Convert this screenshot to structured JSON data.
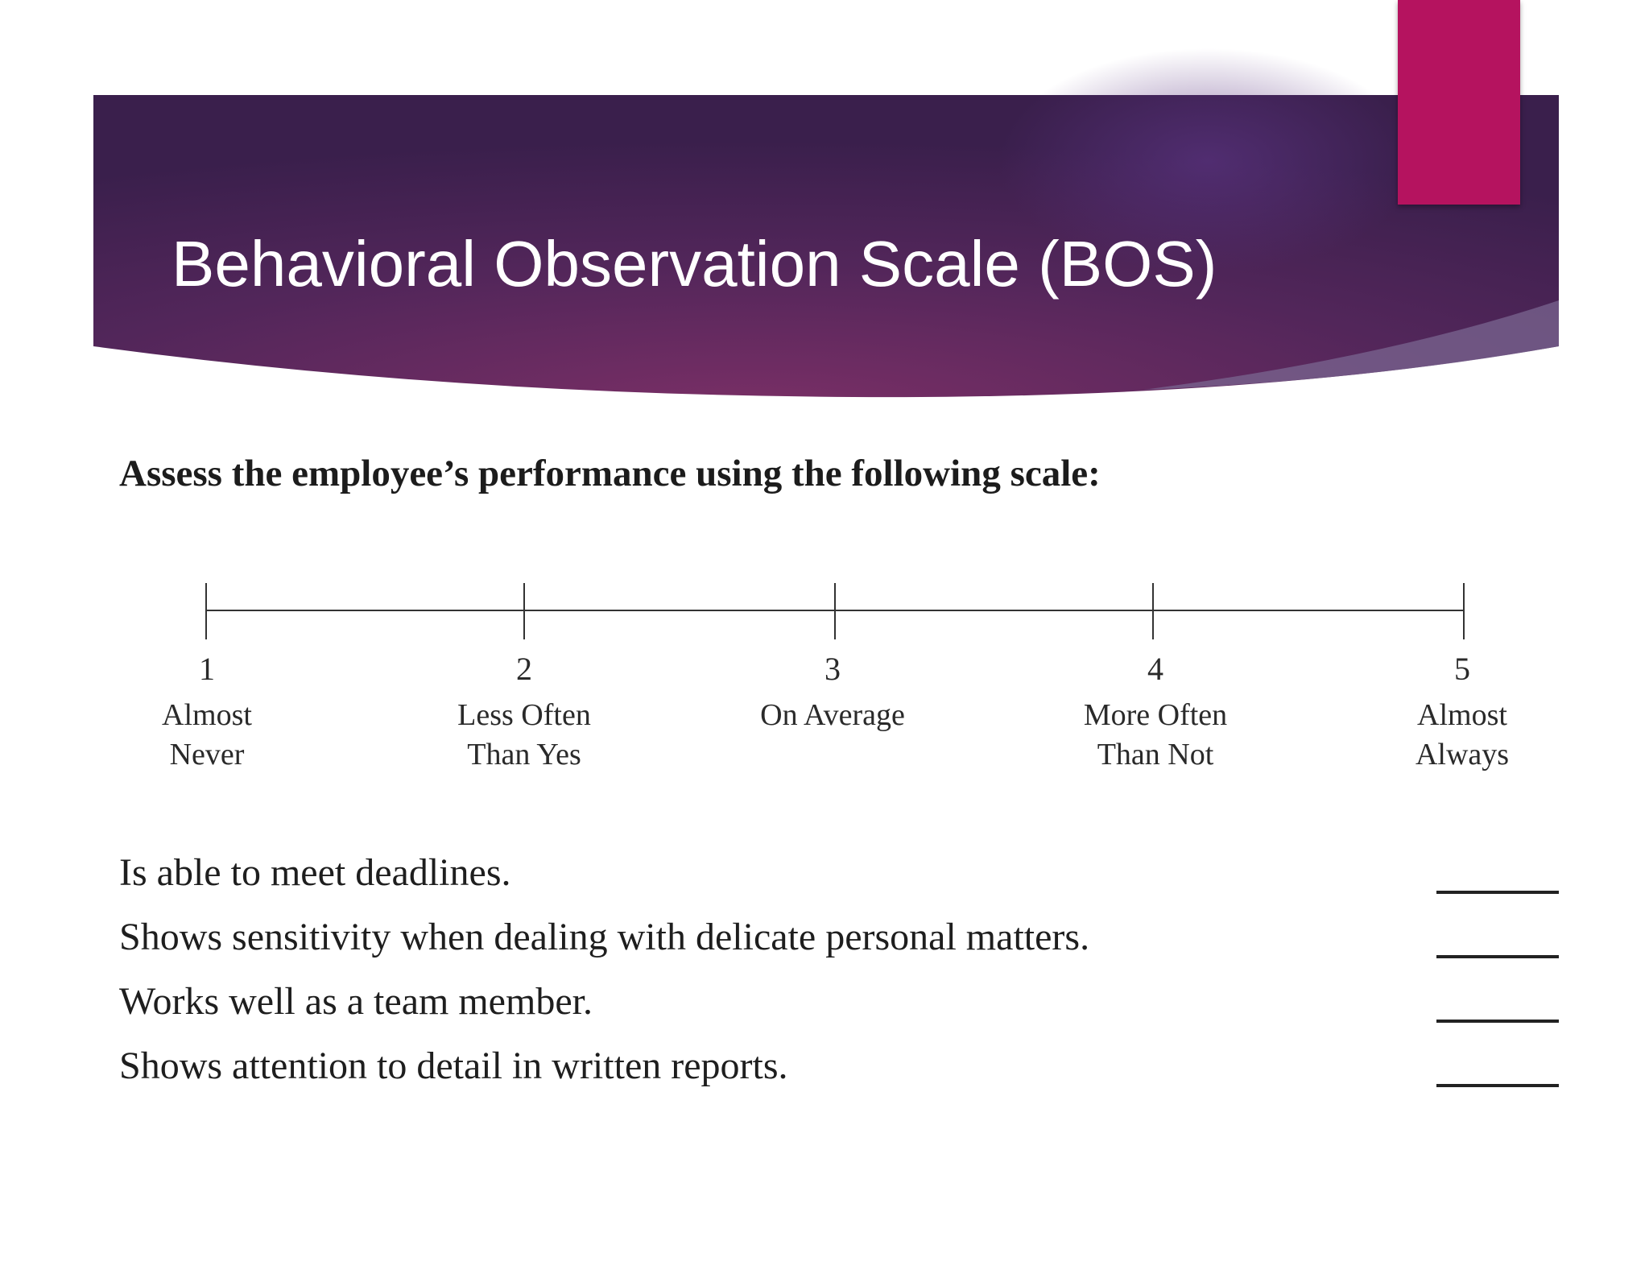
{
  "slide": {
    "title": "Behavioral Observation Scale (BOS)",
    "colors": {
      "banner_dark": "#3e1f4f",
      "banner_mid": "#6b2e63",
      "accent_tab": "#b5135f"
    }
  },
  "form": {
    "instruction": "Assess the employee’s performance using the following scale:",
    "scale": [
      {
        "number": "1",
        "label": "Almost\nNever"
      },
      {
        "number": "2",
        "label": "Less Often\nThan Yes"
      },
      {
        "number": "3",
        "label": "On Average"
      },
      {
        "number": "4",
        "label": "More Often\nThan Not"
      },
      {
        "number": "5",
        "label": "Almost\nAlways"
      }
    ],
    "items": [
      {
        "text": "Is able to meet deadlines."
      },
      {
        "text": "Shows sensitivity when dealing with delicate personal matters."
      },
      {
        "text": "Works well as a team member."
      },
      {
        "text": "Shows attention to detail in written reports."
      }
    ]
  }
}
